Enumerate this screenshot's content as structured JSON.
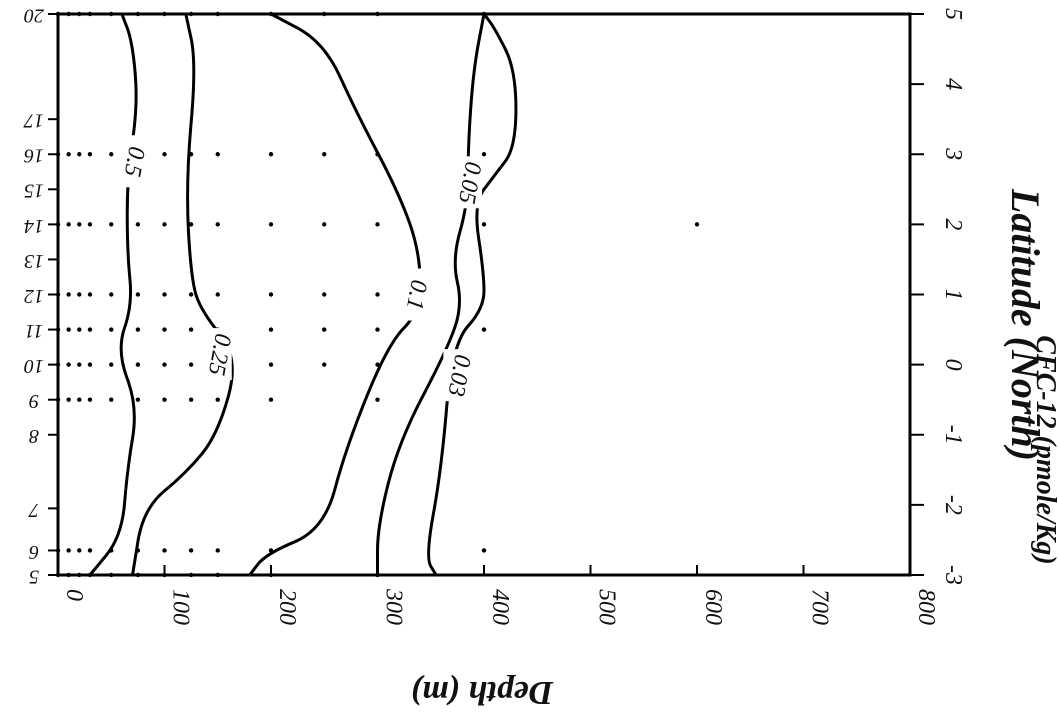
{
  "chart_data": {
    "type": "contour",
    "title": "",
    "xlabel": "Depth (m)",
    "ylabel": "Latitude (North)",
    "zlabel": "CFC-12 (pmole/Kg)",
    "xlim": [
      0,
      800
    ],
    "ylim": [
      -3,
      5
    ],
    "x_ticks": [
      0,
      100,
      200,
      300,
      400,
      500,
      600,
      700,
      800
    ],
    "y_ticks": [
      -3,
      -2,
      -1,
      0,
      1,
      2,
      3,
      4,
      5
    ],
    "grid": false,
    "stations": [
      {
        "label": "5",
        "lat": -3.0
      },
      {
        "label": "6",
        "lat": -2.65
      },
      {
        "label": "7",
        "lat": -2.05
      },
      {
        "label": "8",
        "lat": -1.0
      },
      {
        "label": "9",
        "lat": -0.5
      },
      {
        "label": "10",
        "lat": 0.0
      },
      {
        "label": "11",
        "lat": 0.5
      },
      {
        "label": "12",
        "lat": 1.0
      },
      {
        "label": "13",
        "lat": 1.5
      },
      {
        "label": "14",
        "lat": 2.0
      },
      {
        "label": "15",
        "lat": 2.5
      },
      {
        "label": "16",
        "lat": 3.0
      },
      {
        "label": "17",
        "lat": 3.5
      },
      {
        "label": "20",
        "lat": 5.0
      }
    ],
    "samples": [
      {
        "lat": 5.0,
        "depths": [
          0,
          10,
          20,
          30,
          50,
          75,
          100,
          125,
          150,
          200,
          250,
          300,
          400
        ]
      },
      {
        "lat": 3.0,
        "depths": [
          0,
          10,
          20,
          30,
          50,
          75,
          100,
          125,
          150,
          200,
          250,
          300,
          400
        ]
      },
      {
        "lat": 2.0,
        "depths": [
          0,
          10,
          20,
          30,
          50,
          75,
          100,
          125,
          150,
          200,
          250,
          300,
          400,
          600
        ]
      },
      {
        "lat": 1.0,
        "depths": [
          0,
          10,
          20,
          30,
          50,
          75,
          100,
          125,
          150,
          200,
          250,
          300
        ]
      },
      {
        "lat": 0.5,
        "depths": [
          0,
          10,
          20,
          30,
          50,
          75,
          100,
          125,
          150,
          200,
          250,
          300,
          400
        ]
      },
      {
        "lat": 0.0,
        "depths": [
          0,
          10,
          20,
          30,
          50,
          75,
          100,
          125,
          150,
          200,
          250,
          300
        ]
      },
      {
        "lat": -0.5,
        "depths": [
          0,
          10,
          20,
          30,
          50,
          75,
          100,
          125,
          150,
          200,
          300
        ]
      },
      {
        "lat": -2.65,
        "depths": [
          0,
          10,
          20,
          30,
          50,
          75,
          100,
          125,
          150,
          200,
          400
        ]
      },
      {
        "lat": -3.0,
        "depths": [
          0,
          10,
          20,
          30,
          50,
          75,
          100,
          125,
          150,
          200,
          300
        ]
      }
    ],
    "contours": [
      {
        "level": "0.5",
        "label_at": {
          "depth": 70,
          "lat": 2.9
        },
        "points": [
          [
            30,
            -3
          ],
          [
            60,
            -2.45
          ],
          [
            65,
            -1.5
          ],
          [
            75,
            -0.6
          ],
          [
            55,
            0.2
          ],
          [
            70,
            0.85
          ],
          [
            65,
            1.6
          ],
          [
            65,
            2.7
          ],
          [
            75,
            3.7
          ],
          [
            70,
            4.6
          ],
          [
            60,
            5
          ]
        ]
      },
      {
        "level": "0.25",
        "label_at": {
          "depth": 150,
          "lat": 0.15
        },
        "points": [
          [
            70,
            -3
          ],
          [
            80,
            -2.05
          ],
          [
            120,
            -1.55
          ],
          [
            150,
            -1.0
          ],
          [
            170,
            0.1
          ],
          [
            135,
            0.75
          ],
          [
            125,
            1.2
          ],
          [
            120,
            2.6
          ],
          [
            130,
            4.3
          ],
          [
            120,
            5
          ]
        ]
      },
      {
        "level": "0.1",
        "label_at": {
          "depth": 335,
          "lat": 1.0
        },
        "points": [
          [
            180,
            -3
          ],
          [
            195,
            -2.7
          ],
          [
            250,
            -2.35
          ],
          [
            270,
            -1.2
          ],
          [
            310,
            0.3
          ],
          [
            340,
            0.75
          ],
          [
            340,
            1.6
          ],
          [
            320,
            2.45
          ],
          [
            280,
            3.6
          ],
          [
            250,
            4.6
          ],
          [
            200,
            5
          ]
        ]
      },
      {
        "level": "0.05",
        "label_at": {
          "depth": 385,
          "lat": 2.6
        },
        "points": [
          [
            300,
            -3
          ],
          [
            300,
            -2.3
          ],
          [
            320,
            -1.1
          ],
          [
            365,
            0.2
          ],
          [
            380,
            0.85
          ],
          [
            370,
            1.5
          ],
          [
            385,
            2.3
          ],
          [
            385,
            3.1
          ],
          [
            390,
            4.2
          ],
          [
            400,
            5
          ]
        ]
      },
      {
        "level": "0.03",
        "label_at": {
          "depth": 375,
          "lat": -0.15
        },
        "points": [
          [
            355,
            -3
          ],
          [
            345,
            -2.75
          ],
          [
            360,
            -1.5
          ],
          [
            370,
            0.3
          ],
          [
            400,
            0.8
          ],
          [
            400,
            1.3
          ],
          [
            390,
            2.3
          ],
          [
            410,
            2.7
          ],
          [
            430,
            3.1
          ],
          [
            430,
            4.2
          ],
          [
            410,
            4.8
          ],
          [
            400,
            5
          ]
        ]
      }
    ]
  }
}
